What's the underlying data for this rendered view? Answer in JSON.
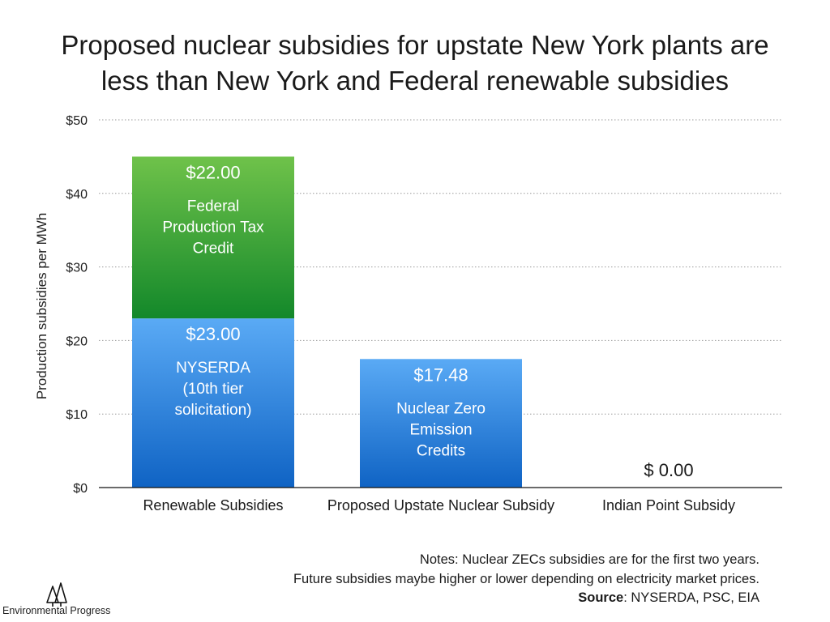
{
  "title_line1": "Proposed nuclear subsidies for upstate New York plants are",
  "title_line2": "less than New York and Federal renewable subsidies",
  "chart_data": {
    "type": "bar",
    "stacked": true,
    "categories": [
      "Renewable Subsidies",
      "Proposed Upstate Nuclear Subsidy",
      "Indian Point Subsidy"
    ],
    "series": [
      {
        "values": [
          23.0,
          17.48,
          0
        ],
        "value_labels": [
          "$23.00",
          "$17.48",
          "$ 0.00"
        ],
        "segment_labels": [
          [
            "NYSERDA",
            "(10th tier",
            "solicitation)"
          ],
          [
            "Nuclear Zero",
            "Emission",
            "Credits"
          ],
          []
        ],
        "color_top": "#5aaaf5",
        "color_bottom": "#0f63c4"
      },
      {
        "values": [
          22.0,
          0,
          0
        ],
        "value_labels": [
          "$22.00",
          "",
          ""
        ],
        "segment_labels": [
          [
            "Federal",
            "Production Tax",
            "Credit"
          ],
          [],
          []
        ],
        "color_top": "#6fc24a",
        "color_bottom": "#13882a"
      }
    ],
    "ylabel": "Production subsidies per MWh",
    "ylim": [
      0,
      50
    ],
    "yticks": [
      0,
      10,
      20,
      30,
      40,
      50
    ],
    "ytick_labels": [
      "$0",
      "$10",
      "$20",
      "$30",
      "$40",
      "$50"
    ],
    "grid": true
  },
  "notes": {
    "line1": "Notes: Nuclear ZECs subsidies are for the first two years.",
    "line2": "Future subsidies maybe higher or lower depending on electricity market prices.",
    "source_label": "Source",
    "source_text": ": NYSERDA, PSC, EIA"
  },
  "logo_text": "Environmental Progress"
}
